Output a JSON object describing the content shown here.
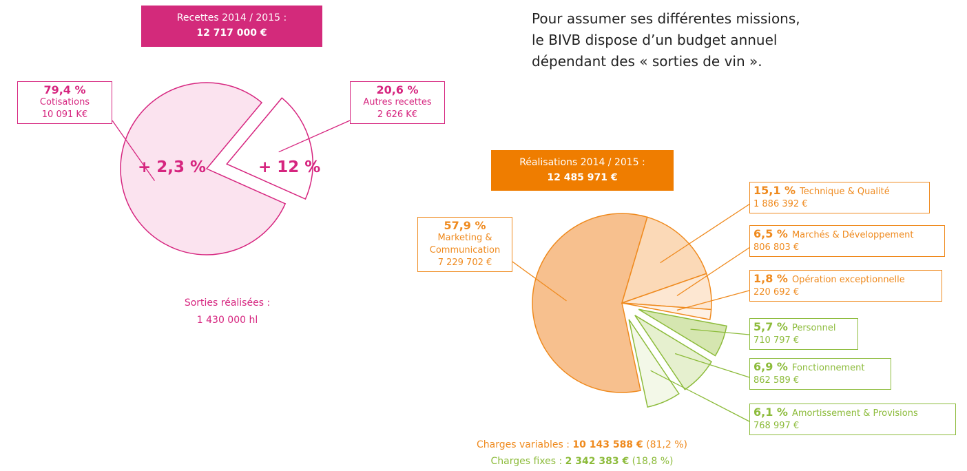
{
  "intro": [
    "Pour assumer ses différentes missions,",
    "le BIVB dispose d’un budget annuel",
    "dépendant des « sorties de vin »."
  ],
  "chart_data": [
    {
      "type": "pie",
      "title": "Recettes 2014 / 2015 :",
      "total": "12 717 000 €",
      "categories": [
        "Cotisations",
        "Autres recettes"
      ],
      "values": [
        79.4,
        20.6
      ],
      "value_labels": [
        "79,4 %",
        "20,6 %"
      ],
      "amounts": [
        "10 091 K€",
        "2 626 K€"
      ],
      "growth": [
        "+ 2,3 %",
        "+ 12 %"
      ],
      "colors": [
        "#fbe3ef",
        "#ffffff"
      ],
      "stroke": "#d6257f",
      "title_color": "#d32a7b",
      "note": [
        "Sorties réalisées :",
        "1 430 000 hl"
      ]
    },
    {
      "type": "pie",
      "title": "Réalisations 2014 / 2015 :",
      "total": "12 485 971 €",
      "categories": [
        "Marketing & Communication",
        "Technique & Qualité",
        "Marchés & Développement",
        "Opération exceptionnelle",
        "Personnel",
        "Fonctionnement",
        "Amortissement & Provisions"
      ],
      "values": [
        57.9,
        15.1,
        6.5,
        1.8,
        5.7,
        6.9,
        6.1
      ],
      "value_labels": [
        "57,9 %",
        "15,1 %",
        "6,5 %",
        "1,8 %",
        "5,7 %",
        "6,9 %",
        "6,1 %"
      ],
      "amounts": [
        "7 229 702 €",
        "1 886 392 €",
        "806 803 €",
        "220 692 €",
        "710 797 €",
        "862 589 €",
        "768 997 €"
      ],
      "colors": [
        "#f7c08e",
        "#fbd9b7",
        "#fde7d2",
        "#fef1e4",
        "#d5e6b0",
        "#e6f0cf",
        "#f3f8e8"
      ],
      "title_color": "#ef7d00",
      "footer": [
        {
          "label": "Charges variables : ",
          "amount": "10 143 588 €",
          "share": " (81,2 %)",
          "color": "#ef8a1e"
        },
        {
          "label": "Charges fixes : ",
          "amount": "2 342 383 €",
          "share": " (18,8 %)",
          "color": "#8cbb3a"
        }
      ]
    }
  ]
}
